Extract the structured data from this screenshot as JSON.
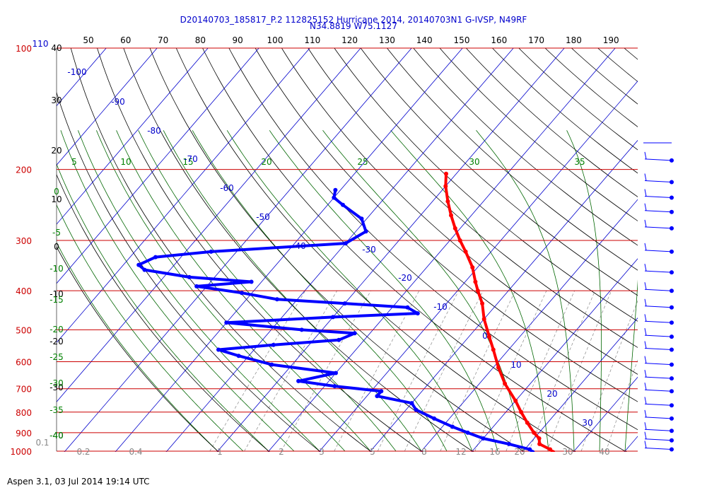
{
  "header": {
    "title_line1": "D20140703_185817_P.2 112825152 Hurricane 2014, 20140703N1 G-IVSP, N49RF",
    "title_line2": "N34.8819 W75.1127"
  },
  "footer": {
    "text": "Aspen 3.1, 03 Jul 2014  19:14 UTC"
  },
  "chart_data": {
    "type": "scatter",
    "kind": "skew-T log-P diagram",
    "y_axis": {
      "unit": "hPa",
      "scale": "log",
      "range": [
        1000,
        100
      ],
      "ticks": [
        100,
        200,
        300,
        400,
        500,
        600,
        700,
        800,
        900,
        1000
      ]
    },
    "top_axis": {
      "ticks": [
        "50",
        "60",
        "70",
        "80",
        "90",
        "100",
        "110",
        "120",
        "130",
        "140",
        "150",
        "160",
        "170",
        "180",
        "190"
      ]
    },
    "corner_label": "110",
    "corner_label_left": "40",
    "left_black_labels": [
      "30",
      "20",
      "10",
      "0",
      "-10",
      "-20",
      "-30",
      "-40"
    ],
    "green_left_labels": [
      "0",
      "-5",
      "-10",
      "-15",
      "-20",
      "-25",
      "-30",
      "-35",
      "-40"
    ],
    "green_top_labels": [
      "5",
      "10",
      "15",
      "20",
      "25",
      "30",
      "35"
    ],
    "isotherm_labels": [
      "-100",
      "-90",
      "-80",
      "-70",
      "-60",
      "-50",
      "-40",
      "-30",
      "-20",
      "-10",
      "0",
      "10",
      "20",
      "30"
    ],
    "mixing_ratio_labels": [
      "0.1",
      "0.2",
      "0.4",
      "1",
      "2",
      "3",
      "5",
      "8",
      "12",
      "16",
      "20",
      "30",
      "40"
    ],
    "series": [
      {
        "name": "Temperature",
        "color": "#ff0000",
        "points": [
          {
            "p": 205,
            "t": -42
          },
          {
            "p": 220,
            "t": -40
          },
          {
            "p": 240,
            "t": -37
          },
          {
            "p": 260,
            "t": -34
          },
          {
            "p": 280,
            "t": -31
          },
          {
            "p": 300,
            "t": -28
          },
          {
            "p": 320,
            "t": -25
          },
          {
            "p": 350,
            "t": -21
          },
          {
            "p": 380,
            "t": -18
          },
          {
            "p": 400,
            "t": -16
          },
          {
            "p": 430,
            "t": -13
          },
          {
            "p": 470,
            "t": -10
          },
          {
            "p": 520,
            "t": -6
          },
          {
            "p": 560,
            "t": -3
          },
          {
            "p": 620,
            "t": 1
          },
          {
            "p": 680,
            "t": 5
          },
          {
            "p": 750,
            "t": 10
          },
          {
            "p": 800,
            "t": 13
          },
          {
            "p": 850,
            "t": 16
          },
          {
            "p": 900,
            "t": 19
          },
          {
            "p": 930,
            "t": 21
          },
          {
            "p": 960,
            "t": 22
          },
          {
            "p": 990,
            "t": 25
          },
          {
            "p": 1005,
            "t": 26
          }
        ]
      },
      {
        "name": "Dewpoint",
        "color": "#0000ff",
        "points": [
          {
            "p": 225,
            "t": -61
          },
          {
            "p": 235,
            "t": -60
          },
          {
            "p": 245,
            "t": -57
          },
          {
            "p": 265,
            "t": -51
          },
          {
            "p": 285,
            "t": -48
          },
          {
            "p": 305,
            "t": -50
          },
          {
            "p": 320,
            "t": -75
          },
          {
            "p": 330,
            "t": -85
          },
          {
            "p": 345,
            "t": -87
          },
          {
            "p": 355,
            "t": -85
          },
          {
            "p": 370,
            "t": -75
          },
          {
            "p": 380,
            "t": -62
          },
          {
            "p": 390,
            "t": -72
          },
          {
            "p": 405,
            "t": -62
          },
          {
            "p": 420,
            "t": -54
          },
          {
            "p": 430,
            "t": -40
          },
          {
            "p": 440,
            "t": -27
          },
          {
            "p": 455,
            "t": -24
          },
          {
            "p": 465,
            "t": -40
          },
          {
            "p": 480,
            "t": -60
          },
          {
            "p": 500,
            "t": -44
          },
          {
            "p": 510,
            "t": -33
          },
          {
            "p": 530,
            "t": -35
          },
          {
            "p": 545,
            "t": -47
          },
          {
            "p": 560,
            "t": -57
          },
          {
            "p": 580,
            "t": -52
          },
          {
            "p": 610,
            "t": -44
          },
          {
            "p": 640,
            "t": -30
          },
          {
            "p": 670,
            "t": -36
          },
          {
            "p": 690,
            "t": -28
          },
          {
            "p": 710,
            "t": -18
          },
          {
            "p": 730,
            "t": -18
          },
          {
            "p": 760,
            "t": -10
          },
          {
            "p": 790,
            "t": -8
          },
          {
            "p": 830,
            "t": -3
          },
          {
            "p": 870,
            "t": 2
          },
          {
            "p": 900,
            "t": 6
          },
          {
            "p": 930,
            "t": 10
          },
          {
            "p": 960,
            "t": 16
          },
          {
            "p": 990,
            "t": 21
          },
          {
            "p": 1005,
            "t": 22
          }
        ]
      }
    ],
    "wind_barbs": [
      {
        "p": 190
      },
      {
        "p": 215
      },
      {
        "p": 235
      },
      {
        "p": 255
      },
      {
        "p": 280
      },
      {
        "p": 320
      },
      {
        "p": 360
      },
      {
        "p": 400
      },
      {
        "p": 440
      },
      {
        "p": 480
      },
      {
        "p": 520
      },
      {
        "p": 560
      },
      {
        "p": 610
      },
      {
        "p": 660
      },
      {
        "p": 710
      },
      {
        "p": 770
      },
      {
        "p": 830
      },
      {
        "p": 890
      },
      {
        "p": 940
      },
      {
        "p": 990
      }
    ],
    "colors": {
      "isobar": "#cc0000",
      "isotherm": "#0000cc",
      "dry_adiabat": "#000000",
      "moist_adiabat": "#006600",
      "mixing_ratio": "#888888"
    }
  }
}
